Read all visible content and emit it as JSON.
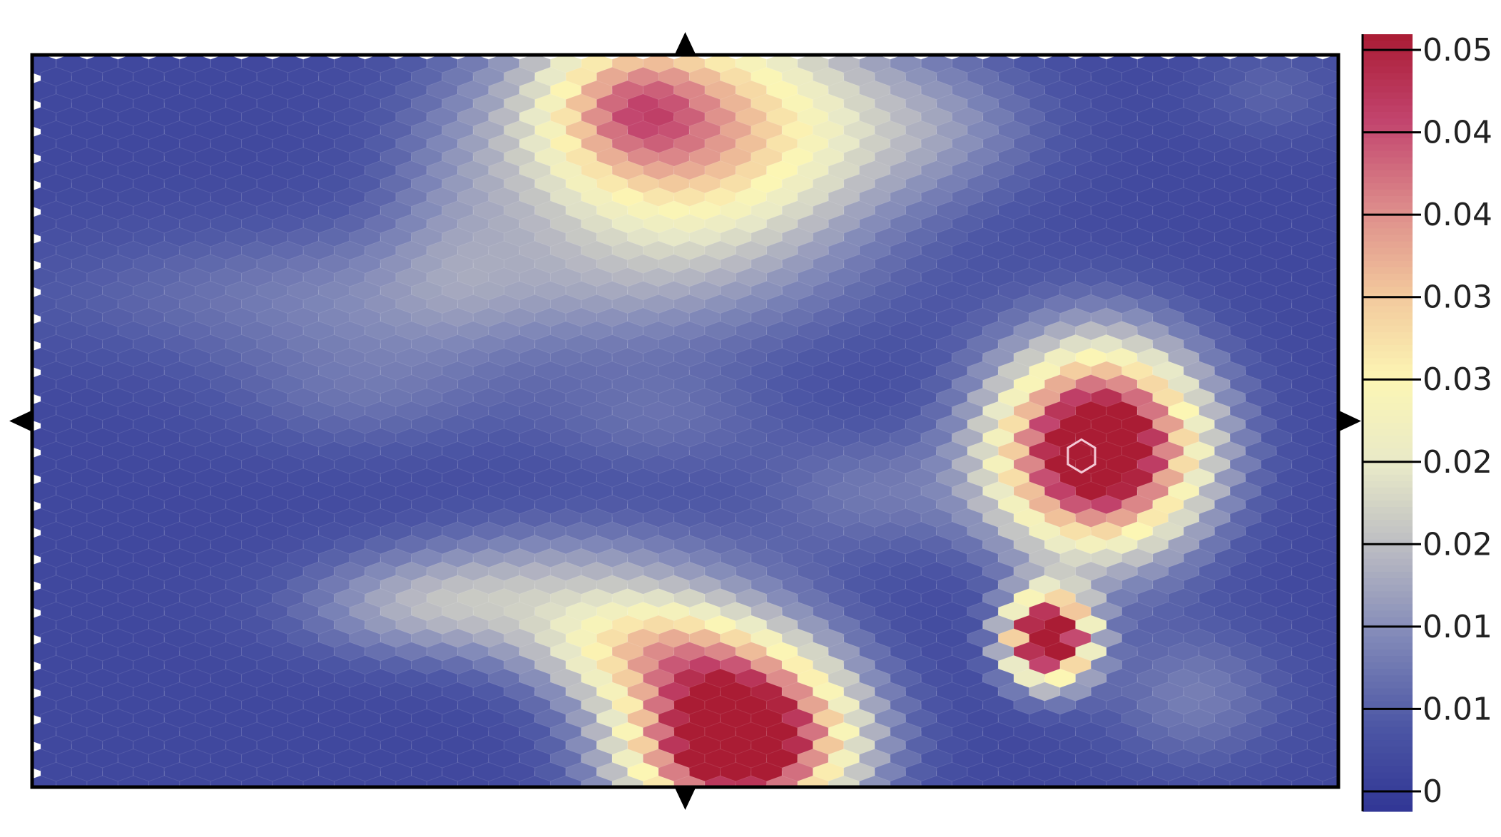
{
  "chart_data": {
    "type": "heatmap",
    "grid": "hexagonal",
    "title": "",
    "xlabel": "",
    "ylabel": "",
    "colormap": [
      "#313695",
      "#4d57a5",
      "#8088b8",
      "#b8b9c2",
      "#e8e9c8",
      "#fcf6b4",
      "#f2c79c",
      "#dc8a8a",
      "#c2446e",
      "#aa1c34"
    ],
    "value_range": [
      0,
      0.05
    ],
    "colorbar": {
      "ticks": [
        {
          "value": 0.05,
          "label": "0.05"
        },
        {
          "value": 0.045,
          "label": "0.04"
        },
        {
          "value": 0.04,
          "label": "0.04"
        },
        {
          "value": 0.035,
          "label": "0.03"
        },
        {
          "value": 0.03,
          "label": "0.03"
        },
        {
          "value": 0.025,
          "label": "0.02"
        },
        {
          "value": 0.02,
          "label": "0.02"
        },
        {
          "value": 0.015,
          "label": "0.01"
        },
        {
          "value": 0.01,
          "label": "0.01"
        },
        {
          "value": 0,
          "label": "0"
        }
      ]
    },
    "background_value": 0.003,
    "field_extent": {
      "x": [
        0,
        1
      ],
      "y": [
        0,
        1
      ]
    },
    "hotspots": [
      {
        "x": 0.504,
        "y": 0.105,
        "peak": 0.034,
        "sx": 0.1,
        "sy": 0.12
      },
      {
        "x": 0.456,
        "y": 0.065,
        "peak": 0.012,
        "sx": 0.04,
        "sy": 0.06
      },
      {
        "x": 0.31,
        "y": 0.33,
        "peak": 0.008,
        "sx": 0.2,
        "sy": 0.07
      },
      {
        "x": 0.32,
        "y": 0.22,
        "peak": 0.004,
        "sx": 0.04,
        "sy": 0.1
      },
      {
        "x": 0.7,
        "y": 0.1,
        "peak": 0.006,
        "sx": 0.06,
        "sy": 0.07
      },
      {
        "x": 0.255,
        "y": 0.47,
        "peak": 0.005,
        "sx": 0.08,
        "sy": 0.06
      },
      {
        "x": 0.48,
        "y": 0.5,
        "peak": 0.005,
        "sx": 0.07,
        "sy": 0.06
      },
      {
        "x": 0.644,
        "y": 0.6,
        "peak": 0.006,
        "sx": 0.06,
        "sy": 0.06
      },
      {
        "x": 0.817,
        "y": 0.54,
        "peak": 0.058,
        "sx": 0.055,
        "sy": 0.095
      },
      {
        "x": 0.779,
        "y": 0.8,
        "peak": 0.06,
        "sx": 0.022,
        "sy": 0.042
      },
      {
        "x": 0.54,
        "y": 0.935,
        "peak": 0.06,
        "sx": 0.06,
        "sy": 0.085
      },
      {
        "x": 0.465,
        "y": 0.815,
        "peak": 0.02,
        "sx": 0.06,
        "sy": 0.05
      },
      {
        "x": 0.3,
        "y": 0.76,
        "peak": 0.01,
        "sx": 0.07,
        "sy": 0.05
      },
      {
        "x": 0.42,
        "y": 0.72,
        "peak": 0.01,
        "sx": 0.1,
        "sy": 0.06
      },
      {
        "x": 0.89,
        "y": 0.88,
        "peak": 0.007,
        "sx": 0.05,
        "sy": 0.07
      },
      {
        "x": 0.95,
        "y": 0.05,
        "peak": 0.004,
        "sx": 0.04,
        "sy": 0.05
      }
    ],
    "highlighted_cell": {
      "x": 0.804,
      "y": 0.548
    },
    "edge_markers": [
      "top",
      "bottom",
      "left",
      "right"
    ]
  }
}
